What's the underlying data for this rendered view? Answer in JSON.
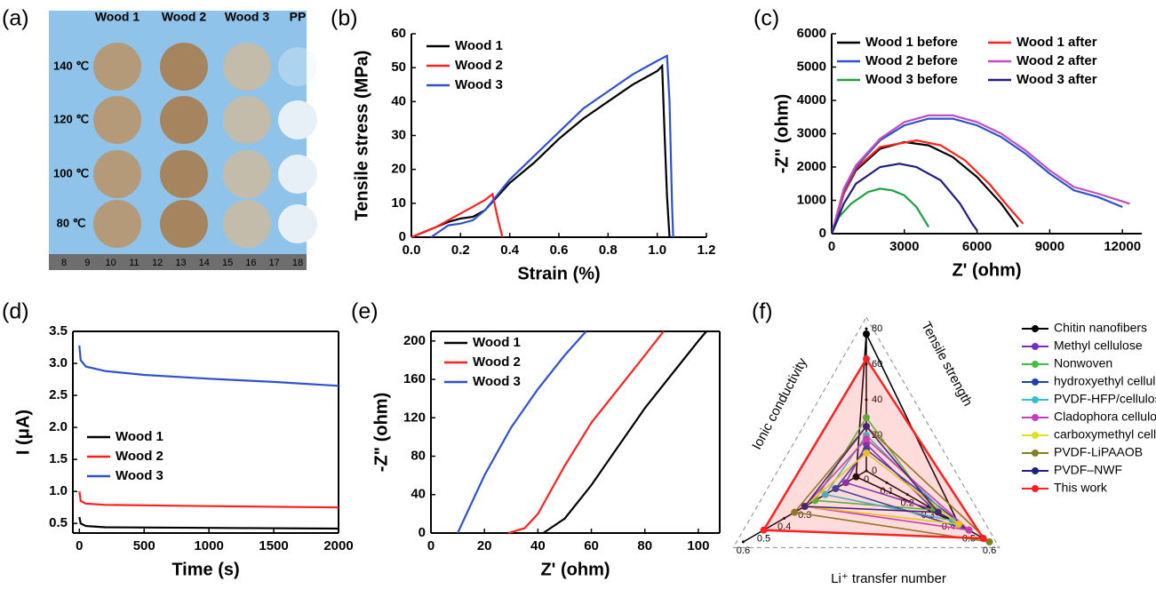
{
  "photo": {
    "panel_label": "(a)",
    "columns": [
      "Wood 1",
      "Wood 2",
      "Wood 3",
      "PP"
    ],
    "rows": [
      "140 ℃",
      "120 ℃",
      "100 ℃",
      "80 ℃"
    ],
    "ruler": [
      8,
      9,
      10,
      11,
      12,
      13,
      14,
      15,
      16,
      17,
      18
    ]
  },
  "chart_data": [
    {
      "type": "line",
      "panel_label": "(b)",
      "xlabel": "Strain (%)",
      "ylabel": "Tensile stress (MPa)",
      "xlim": [
        0,
        1.2
      ],
      "xticks": [
        {
          "value": 0,
          "label": "0.0"
        },
        0.2,
        0.4,
        0.6,
        0.8,
        {
          "value": 1,
          "label": "1.0"
        },
        1.2
      ],
      "ylim": [
        0,
        60
      ],
      "yticks": [
        0,
        10,
        20,
        30,
        40,
        50,
        60
      ],
      "series": [
        {
          "name": "Wood 1",
          "color": "#000000",
          "x": [
            0,
            0.05,
            0.1,
            0.15,
            0.2,
            0.25,
            0.3,
            0.35,
            0.4,
            0.5,
            0.6,
            0.7,
            0.8,
            0.9,
            1.0,
            1.02,
            1.03,
            1.04,
            1.05
          ],
          "values": [
            0,
            1.5,
            3,
            4.5,
            5.5,
            6,
            8,
            12,
            16,
            22,
            29,
            35,
            40,
            45,
            49,
            50.5,
            30,
            12,
            0
          ]
        },
        {
          "name": "Wood 2",
          "color": "#ff2020",
          "x": [
            0,
            0.05,
            0.1,
            0.15,
            0.2,
            0.25,
            0.3,
            0.33,
            0.35,
            0.37
          ],
          "values": [
            0,
            1.5,
            3,
            5,
            7,
            9,
            11,
            12.7,
            6,
            0
          ]
        },
        {
          "name": "Wood 3",
          "color": "#3050d0",
          "x": [
            0.08,
            0.12,
            0.15,
            0.2,
            0.25,
            0.3,
            0.35,
            0.4,
            0.5,
            0.6,
            0.7,
            0.8,
            0.9,
            1.0,
            1.04,
            1.05,
            1.06,
            1.065
          ],
          "values": [
            0,
            2,
            3.5,
            4,
            5,
            8,
            12.5,
            17,
            24,
            31,
            38,
            43,
            48,
            52,
            53.5,
            40,
            10,
            0
          ]
        }
      ]
    },
    {
      "type": "line",
      "panel_label": "(c)",
      "xlabel": "Z' (ohm)",
      "ylabel": "-Z\" (ohm)",
      "xlim": [
        0,
        12800
      ],
      "xticks": [
        0,
        3000,
        6000,
        9000,
        12000
      ],
      "ylim": [
        0,
        6000
      ],
      "yticks": [
        0,
        1000,
        2000,
        3000,
        4000,
        5000,
        6000
      ],
      "series": [
        {
          "name": "Wood 1 before",
          "color": "#000000",
          "x": [
            0,
            500,
            1000,
            2000,
            3000,
            4000,
            5000,
            6000,
            7000,
            7700
          ],
          "values": [
            0,
            1200,
            1900,
            2550,
            2750,
            2650,
            2300,
            1700,
            900,
            200
          ]
        },
        {
          "name": "Wood 1 after",
          "color": "#ff2020",
          "x": [
            0,
            500,
            1000,
            2000,
            3500,
            4500,
            5500,
            6500,
            7300,
            7900
          ],
          "values": [
            0,
            1200,
            1950,
            2600,
            2800,
            2650,
            2200,
            1500,
            800,
            300
          ]
        },
        {
          "name": "Wood 2 before",
          "color": "#3050d0",
          "x": [
            0,
            500,
            1000,
            2000,
            3000,
            4000,
            5000,
            6000,
            7000,
            8000,
            9000,
            10000,
            11000,
            12000
          ],
          "values": [
            0,
            1300,
            2000,
            2800,
            3250,
            3450,
            3450,
            3250,
            2900,
            2400,
            1800,
            1300,
            1100,
            800
          ]
        },
        {
          "name": "Wood 2 after",
          "color": "#c050c0",
          "x": [
            0,
            500,
            1000,
            2000,
            3000,
            4000,
            5000,
            6000,
            7000,
            8000,
            9000,
            10000,
            11000,
            12300
          ],
          "values": [
            0,
            1350,
            2050,
            2850,
            3350,
            3550,
            3550,
            3350,
            3000,
            2500,
            1900,
            1400,
            1200,
            900
          ]
        },
        {
          "name": "Wood 3 before",
          "color": "#20a040",
          "x": [
            0,
            300,
            800,
            1500,
            2000,
            2500,
            3000,
            3500,
            4000
          ],
          "values": [
            0,
            500,
            900,
            1250,
            1350,
            1300,
            1150,
            800,
            200
          ]
        },
        {
          "name": "Wood 3 after",
          "color": "#202080",
          "x": [
            0,
            500,
            1000,
            2000,
            2800,
            3500,
            4500,
            5300,
            5800,
            6000
          ],
          "values": [
            0,
            900,
            1500,
            2000,
            2100,
            2000,
            1600,
            900,
            300,
            100
          ]
        }
      ]
    },
    {
      "type": "line",
      "panel_label": "(d)",
      "xlabel": "Time (s)",
      "ylabel": "I (μA)",
      "xlim": [
        -50,
        2000
      ],
      "xticks": [
        0,
        500,
        1000,
        1500,
        2000
      ],
      "ylim": [
        0.35,
        3.5
      ],
      "yticks": [
        0.5,
        {
          "value": 1,
          "label": "1.0"
        },
        1.5,
        {
          "value": 2,
          "label": "2.0"
        },
        2.5,
        {
          "value": 3,
          "label": "3.0"
        },
        3.5
      ],
      "series": [
        {
          "name": "Wood 1",
          "color": "#000000",
          "x": [
            0,
            10,
            50,
            200,
            1000,
            2000
          ],
          "values": [
            0.6,
            0.5,
            0.46,
            0.44,
            0.43,
            0.42
          ]
        },
        {
          "name": "Wood 2",
          "color": "#ff2020",
          "x": [
            0,
            10,
            50,
            200,
            1000,
            2000
          ],
          "values": [
            1.0,
            0.85,
            0.81,
            0.79,
            0.77,
            0.75
          ]
        },
        {
          "name": "Wood 3",
          "color": "#3050d0",
          "x": [
            0,
            10,
            50,
            200,
            500,
            1000,
            1500,
            2000
          ],
          "values": [
            3.28,
            3.05,
            2.95,
            2.88,
            2.82,
            2.76,
            2.71,
            2.65
          ]
        }
      ]
    },
    {
      "type": "line",
      "panel_label": "(e)",
      "xlabel": "Z' (ohm)",
      "ylabel": "-Z\" (ohm)",
      "xlim": [
        0,
        108
      ],
      "xticks": [
        0,
        20,
        40,
        60,
        80,
        100
      ],
      "ylim": [
        0,
        210
      ],
      "yticks": [
        0,
        40,
        80,
        120,
        160,
        200
      ],
      "series": [
        {
          "name": "Wood 1",
          "color": "#000000",
          "x": [
            42,
            50,
            60,
            70,
            80,
            90,
            100,
            103
          ],
          "values": [
            0,
            15,
            50,
            90,
            130,
            165,
            200,
            210
          ]
        },
        {
          "name": "Wood 2",
          "color": "#ff2020",
          "x": [
            29,
            35,
            40,
            50,
            60,
            70,
            80,
            87
          ],
          "values": [
            0,
            5,
            20,
            70,
            115,
            150,
            185,
            210
          ]
        },
        {
          "name": "Wood 3",
          "color": "#3050d0",
          "x": [
            10,
            15,
            20,
            30,
            40,
            50,
            58
          ],
          "values": [
            0,
            30,
            60,
            110,
            150,
            185,
            210
          ]
        }
      ]
    },
    {
      "type": "radar",
      "panel_label": "(f)",
      "axes": [
        {
          "name": "Tensile strength",
          "lim": [
            0,
            80
          ],
          "ticks": [
            0,
            20,
            40,
            60,
            80
          ]
        },
        {
          "name": "Li⁺ transfer number",
          "lim": [
            0,
            0.6
          ],
          "ticks": [
            0.1,
            0.2,
            0.3,
            0.4,
            0.5,
            0.6
          ]
        },
        {
          "name": "Ionic conductivity",
          "lim": [
            0,
            0.6
          ],
          "ticks": [
            0,
            0.3,
            0.4,
            0.5,
            0.6
          ]
        }
      ],
      "series": [
        {
          "name": "Chitin nanofibers",
          "color": "#000000",
          "values": [
            77,
            0.45,
            0.05
          ]
        },
        {
          "name": "Methyl cellulose",
          "color": "#7030c0",
          "values": [
            15,
            0.33,
            0.1
          ]
        },
        {
          "name": "Nonwoven",
          "color": "#40c040",
          "values": [
            30,
            0.33,
            0.25
          ]
        },
        {
          "name": "hydroxyethyl cellulose",
          "color": "#2040b0",
          "values": [
            12,
            0.5,
            0.15
          ]
        },
        {
          "name": "PVDF-HFP/cellulose",
          "color": "#30c0d0",
          "values": [
            20,
            0.42,
            0.2
          ]
        },
        {
          "name": "Cladophora cellulose",
          "color": "#c040c0",
          "values": [
            18,
            0.5,
            0.3
          ]
        },
        {
          "name": "carboxymethyl cellulose",
          "color": "#e0e020",
          "values": [
            10,
            0.45,
            0.3
          ]
        },
        {
          "name": "PVDF-LiPAAOB",
          "color": "#808020",
          "values": [
            25,
            0.6,
            0.35
          ]
        },
        {
          "name": "PVDF–NWF",
          "color": "#202080",
          "values": [
            25,
            0.35,
            0.3
          ]
        },
        {
          "name": "This work",
          "color": "#ff2020",
          "values": [
            63,
            0.57,
            0.5
          ]
        }
      ]
    }
  ]
}
